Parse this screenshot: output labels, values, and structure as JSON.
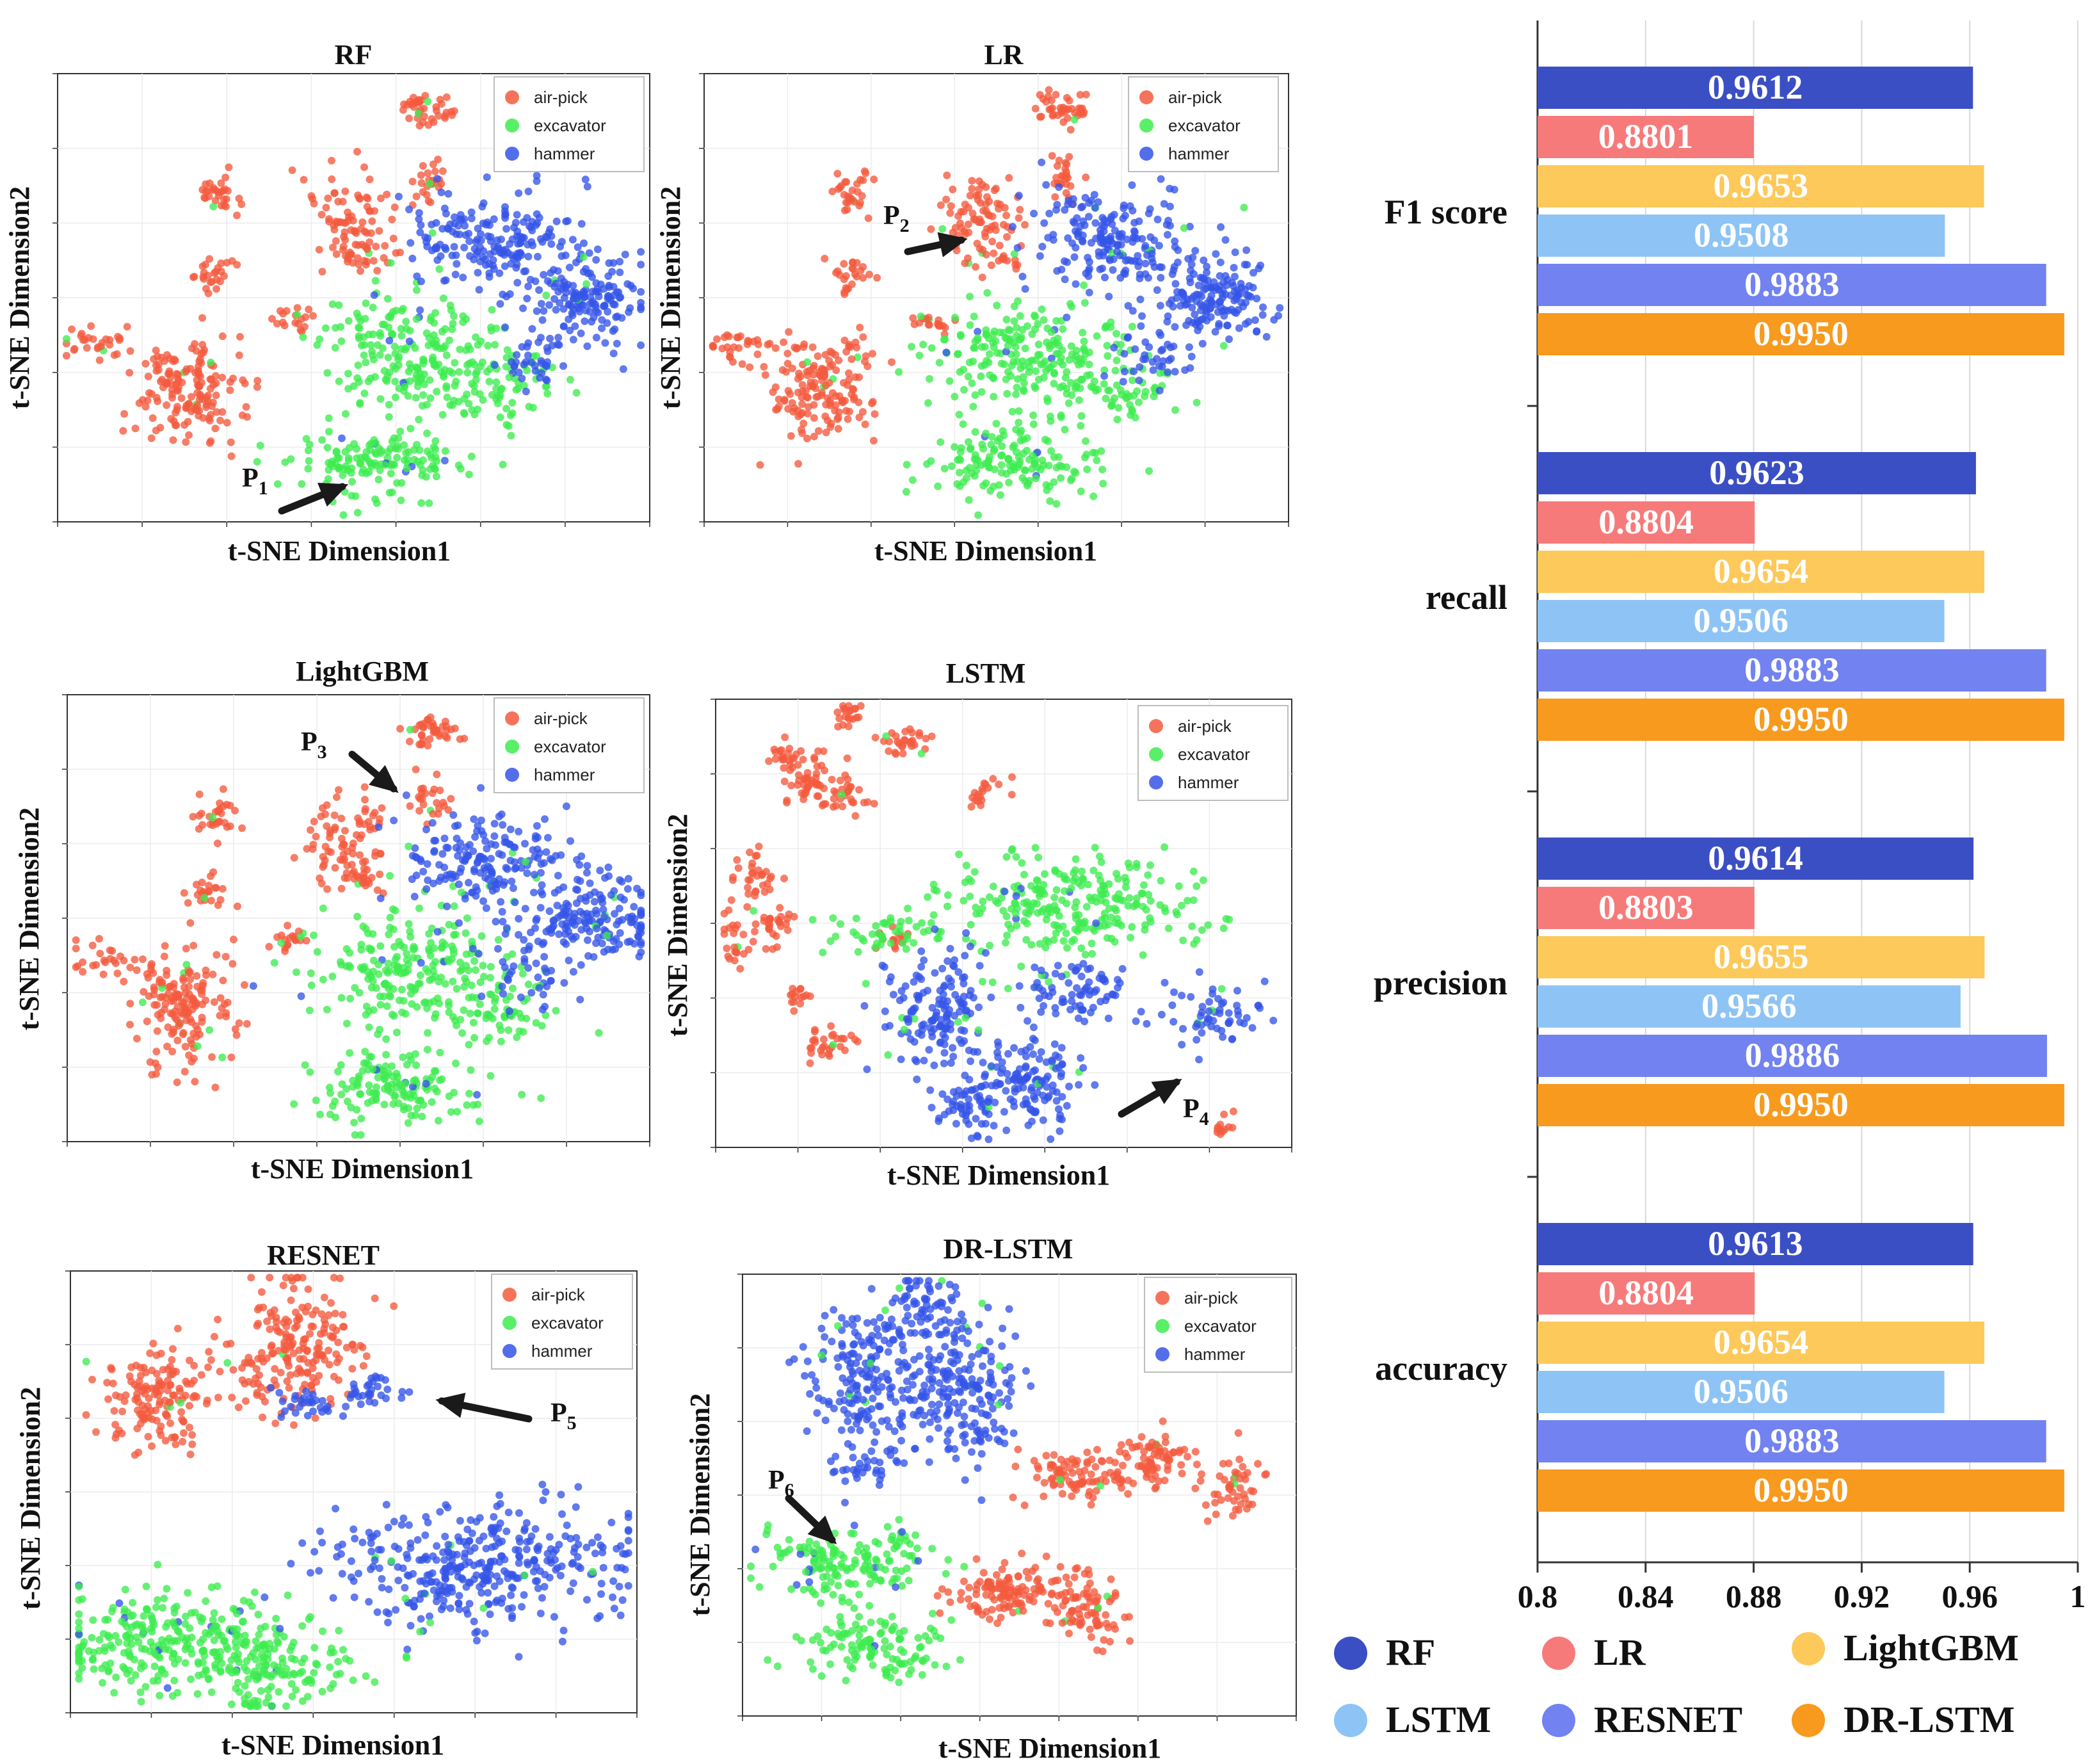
{
  "colors": {
    "airpick": "#f45a3e",
    "excavator": "#3dec4f",
    "hammer": "#3555e8",
    "arrow": "#1a1a1a"
  },
  "legend_labels": [
    "air-pick",
    "excavator",
    "hammer"
  ],
  "tsne_panels": [
    {
      "title": "RF",
      "xlabel": "t-SNE Dimension1",
      "ylabel": "t-SNE Dimension2",
      "marker": "P",
      "marker_sub": "1"
    },
    {
      "title": "LR",
      "xlabel": "t-SNE Dimension1",
      "ylabel": "t-SNE Dimension2",
      "marker": "P",
      "marker_sub": "2"
    },
    {
      "title": "LightGBM",
      "xlabel": "t-SNE Dimension1",
      "ylabel": "t-SNE Dimension2",
      "marker": "P",
      "marker_sub": "3"
    },
    {
      "title": "LSTM",
      "xlabel": "t-SNE Dimension1",
      "ylabel": "t-SNE Dimension2",
      "marker": "P",
      "marker_sub": "4"
    },
    {
      "title": "RESNET",
      "xlabel": "t-SNE Dimension1",
      "ylabel": "t-SNE Dimension2",
      "marker": "P",
      "marker_sub": "5"
    },
    {
      "title": "DR-LSTM",
      "xlabel": "t-SNE Dimension1",
      "ylabel": "t-SNE Dimension2",
      "marker": "P",
      "marker_sub": "6"
    }
  ],
  "chart_data": {
    "type": "bar",
    "orientation": "horizontal",
    "categories": [
      "F1 score",
      "recall",
      "precision",
      "accuracy"
    ],
    "series": [
      {
        "name": "RF",
        "color": "#3b4fc4",
        "values": [
          0.9612,
          0.9623,
          0.9614,
          0.9613
        ]
      },
      {
        "name": "LR",
        "color": "#f77a7a",
        "values": [
          0.8801,
          0.8804,
          0.8803,
          0.8804
        ]
      },
      {
        "name": "LightGBM",
        "color": "#fcc95a",
        "values": [
          0.9653,
          0.9654,
          0.9655,
          0.9654
        ]
      },
      {
        "name": "LSTM",
        "color": "#8ec4f5",
        "values": [
          0.9508,
          0.9506,
          0.9566,
          0.9506
        ]
      },
      {
        "name": "RESNET",
        "color": "#7282f0",
        "values": [
          0.9883,
          0.9883,
          0.9886,
          0.9883
        ]
      },
      {
        "name": "DR-LSTM",
        "color": "#f79a1e",
        "values": [
          0.995,
          0.995,
          0.995,
          0.995
        ]
      }
    ],
    "value_labels": [
      [
        "0.9612",
        "0.8801",
        "0.9653",
        "0.9508",
        "0.9883",
        "0.9950"
      ],
      [
        "0.9623",
        "0.8804",
        "0.9654",
        "0.9506",
        "0.9883",
        "0.9950"
      ],
      [
        "0.9614",
        "0.8803",
        "0.9655",
        "0.9566",
        "0.9886",
        "0.9950"
      ],
      [
        "0.9613",
        "0.8804",
        "0.9654",
        "0.9506",
        "0.9883",
        "0.9950"
      ]
    ],
    "xlim": [
      0.8,
      1.0
    ],
    "xticks": [
      0.8,
      0.84,
      0.88,
      0.92,
      0.96,
      1.0
    ],
    "xtick_labels": [
      "0.8",
      "0.84",
      "0.88",
      "0.92",
      "0.96",
      "1"
    ],
    "grid": true,
    "legend": "bottom"
  }
}
